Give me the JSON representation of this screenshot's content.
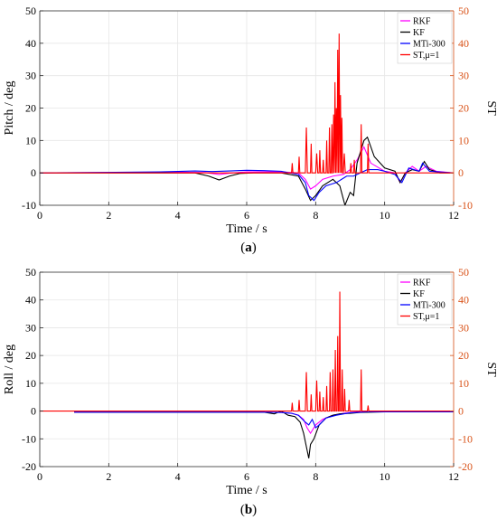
{
  "colors": {
    "rkf": "#FF00FF",
    "kf": "#000000",
    "mti": "#0000FF",
    "st": "#FF0000",
    "right_axis": "#D95319",
    "grid": "#E6E6E6"
  },
  "chart_data": [
    {
      "type": "line",
      "caption": "(a)",
      "caption_bold": "a",
      "xlabel": "Time / s",
      "ylabel": "Pitch / deg",
      "y2label": "ST",
      "xlim": [
        0,
        12
      ],
      "ylim": [
        -10,
        50
      ],
      "y2lim": [
        -10,
        50
      ],
      "xticks": [
        "0",
        "2",
        "4",
        "6",
        "8",
        "10",
        "12"
      ],
      "yticks": [
        "-10",
        "0",
        "10",
        "20",
        "30",
        "40",
        "50"
      ],
      "y2ticks": [
        "-10",
        "0",
        "10",
        "20",
        "30",
        "40",
        "50"
      ],
      "grid": true,
      "legend_position": "top-right",
      "legend": [
        "RKF",
        "KF",
        "MTi-300",
        "ST,μ=1"
      ],
      "series": [
        {
          "name": "RKF",
          "axis": "left",
          "x": [
            0,
            4,
            4.8,
            5.2,
            5.6,
            6.0,
            7.0,
            7.5,
            7.7,
            7.85,
            8.0,
            8.2,
            8.5,
            8.8,
            9.0,
            9.2,
            9.4,
            9.6,
            10.0,
            10.3,
            10.45,
            10.6,
            10.8,
            11.0,
            11.2,
            11.5,
            12
          ],
          "y": [
            0,
            0.2,
            0.1,
            -0.5,
            0,
            0.3,
            0.3,
            0,
            -2,
            -5,
            -4,
            -2,
            -1,
            -0.5,
            1,
            4,
            8,
            3,
            0.5,
            0,
            -3,
            0,
            2,
            0.5,
            2,
            0.5,
            0
          ]
        },
        {
          "name": "KF",
          "axis": "left",
          "x": [
            0,
            4.5,
            4.9,
            5.2,
            5.5,
            5.8,
            6.2,
            7.0,
            7.5,
            7.7,
            7.85,
            8.0,
            8.2,
            8.5,
            8.7,
            8.85,
            9.0,
            9.1,
            9.2,
            9.4,
            9.5,
            9.7,
            10.0,
            10.3,
            10.45,
            10.6,
            10.8,
            11.0,
            11.15,
            11.3,
            11.6,
            12
          ],
          "y": [
            0,
            0,
            -1,
            -2.2,
            -1,
            -0.2,
            0,
            0,
            -1,
            -5,
            -8.5,
            -7,
            -4,
            -2,
            -4,
            -10,
            -6,
            -7,
            3,
            10,
            11,
            5,
            1.5,
            0.5,
            -3,
            0,
            1,
            0.5,
            3.5,
            1,
            0,
            0
          ]
        },
        {
          "name": "MTi-300",
          "axis": "left",
          "x": [
            0,
            3.5,
            4.5,
            5.0,
            5.5,
            6.0,
            6.5,
            7.0,
            7.5,
            7.7,
            7.8,
            7.95,
            8.1,
            8.3,
            8.6,
            8.9,
            9.1,
            9.3,
            9.5,
            9.8,
            10.0,
            10.3,
            10.5,
            10.7,
            11.0,
            11.1,
            11.3,
            12
          ],
          "y": [
            0,
            0.3,
            0.6,
            0.4,
            0.6,
            0.8,
            0.7,
            0.5,
            -0.5,
            -3,
            -7,
            -8.5,
            -6,
            -4,
            -3,
            -1,
            -1,
            0,
            1,
            1,
            0.5,
            -0.5,
            -3,
            1.5,
            0.5,
            3,
            0.5,
            0
          ]
        },
        {
          "name": "ST,μ=1",
          "axis": "right",
          "x": [
            0,
            7.3,
            7.32,
            7.34,
            7.5,
            7.52,
            7.54,
            7.7,
            7.73,
            7.76,
            7.85,
            7.87,
            7.89,
            8.0,
            8.03,
            8.06,
            8.1,
            8.12,
            8.14,
            8.2,
            8.22,
            8.24,
            8.3,
            8.32,
            8.34,
            8.38,
            8.4,
            8.42,
            8.45,
            8.47,
            8.49,
            8.5,
            8.52,
            8.54,
            8.56,
            8.58,
            8.6,
            8.62,
            8.64,
            8.66,
            8.68,
            8.7,
            8.72,
            8.74,
            8.76,
            8.78,
            8.8,
            8.83,
            8.86,
            8.9,
            9.0,
            9.02,
            9.04,
            9.1,
            9.12,
            9.14,
            9.3,
            9.32,
            9.34,
            9.5,
            9.52,
            9.54,
            12
          ],
          "y": [
            0,
            0,
            3,
            0,
            0,
            5,
            0,
            0,
            14,
            0,
            0,
            9,
            0,
            0,
            6,
            0,
            0,
            7,
            0,
            0,
            4,
            0,
            0,
            10,
            0,
            0,
            14,
            0,
            0,
            15,
            0,
            0,
            18,
            0,
            28,
            0,
            20,
            0,
            38,
            0,
            43,
            0,
            24,
            0,
            17,
            0,
            0,
            6,
            0,
            0,
            0,
            3,
            0,
            0,
            4,
            0,
            0,
            15,
            0,
            0,
            9,
            0,
            0
          ]
        }
      ]
    },
    {
      "type": "line",
      "caption": "(b)",
      "caption_bold": "b",
      "xlabel": "Time / s",
      "ylabel": "Roll / deg",
      "y2label": "ST",
      "xlim": [
        0,
        12
      ],
      "ylim": [
        -20,
        50
      ],
      "y2lim": [
        -20,
        50
      ],
      "xticks": [
        "0",
        "2",
        "4",
        "6",
        "8",
        "10",
        "12"
      ],
      "yticks": [
        "-20",
        "-10",
        "0",
        "10",
        "20",
        "30",
        "40",
        "50"
      ],
      "y2ticks": [
        "-20",
        "-10",
        "0",
        "10",
        "20",
        "30",
        "40",
        "50"
      ],
      "grid": true,
      "legend_position": "top-right",
      "legend": [
        "RKF",
        "KF",
        "MTi-300",
        "ST,μ=1"
      ],
      "series": [
        {
          "name": "RKF",
          "axis": "left",
          "x": [
            1,
            6.5,
            7.0,
            7.3,
            7.5,
            7.65,
            7.75,
            7.85,
            8.0,
            8.2,
            8.5,
            8.8,
            9.0,
            9.2,
            9.5,
            10.0,
            12
          ],
          "y": [
            -0.4,
            -0.4,
            -0.5,
            -0.8,
            -1.5,
            -3,
            -6,
            -8,
            -5,
            -3,
            -1.5,
            -0.8,
            -0.5,
            -0.3,
            -0.3,
            -0.2,
            -0.2
          ]
        },
        {
          "name": "KF",
          "axis": "left",
          "x": [
            1,
            6.5,
            6.8,
            7.0,
            7.2,
            7.4,
            7.55,
            7.65,
            7.75,
            7.8,
            7.85,
            7.95,
            8.1,
            8.3,
            8.5,
            8.7,
            9.0,
            9.3,
            9.6,
            10.0,
            12
          ],
          "y": [
            -0.4,
            -0.4,
            -1,
            0,
            -1.5,
            -2,
            -4,
            -8,
            -14,
            -17,
            -12,
            -10,
            -5,
            -2.5,
            -1.5,
            -1,
            -0.8,
            -0.5,
            -0.4,
            -0.3,
            -0.3
          ]
        },
        {
          "name": "MTi-300",
          "axis": "left",
          "x": [
            1,
            6.5,
            7.0,
            7.3,
            7.5,
            7.7,
            7.8,
            7.9,
            8.0,
            8.1,
            8.3,
            8.6,
            9.0,
            9.5,
            10.0,
            12
          ],
          "y": [
            -0.4,
            -0.4,
            -0.5,
            -0.8,
            -1.5,
            -4,
            -5,
            -3,
            -6,
            -5,
            -2.5,
            -1.5,
            -0.6,
            -0.3,
            -0.3,
            -0.3
          ]
        },
        {
          "name": "ST,μ=1",
          "axis": "right",
          "x": [
            0,
            7.3,
            7.32,
            7.34,
            7.5,
            7.52,
            7.54,
            7.7,
            7.73,
            7.76,
            7.85,
            7.87,
            7.89,
            8.0,
            8.03,
            8.06,
            8.1,
            8.12,
            8.14,
            8.2,
            8.22,
            8.24,
            8.3,
            8.32,
            8.34,
            8.4,
            8.42,
            8.44,
            8.48,
            8.5,
            8.52,
            8.55,
            8.57,
            8.59,
            8.62,
            8.64,
            8.66,
            8.68,
            8.7,
            8.72,
            8.75,
            8.77,
            8.79,
            8.82,
            8.84,
            8.86,
            8.95,
            8.97,
            8.99,
            9.3,
            9.32,
            9.34,
            9.5,
            9.52,
            9.54,
            12
          ],
          "y": [
            0,
            0,
            3,
            0,
            0,
            4,
            0,
            0,
            14,
            0,
            0,
            6,
            0,
            0,
            11,
            0,
            0,
            7,
            0,
            0,
            5,
            0,
            0,
            9,
            0,
            0,
            14,
            0,
            0,
            15,
            0,
            0,
            22,
            0,
            0,
            27,
            0,
            0,
            43,
            0,
            0,
            15,
            0,
            0,
            8,
            0,
            0,
            4,
            0,
            0,
            15,
            0,
            0,
            2,
            0,
            0
          ]
        }
      ]
    }
  ]
}
